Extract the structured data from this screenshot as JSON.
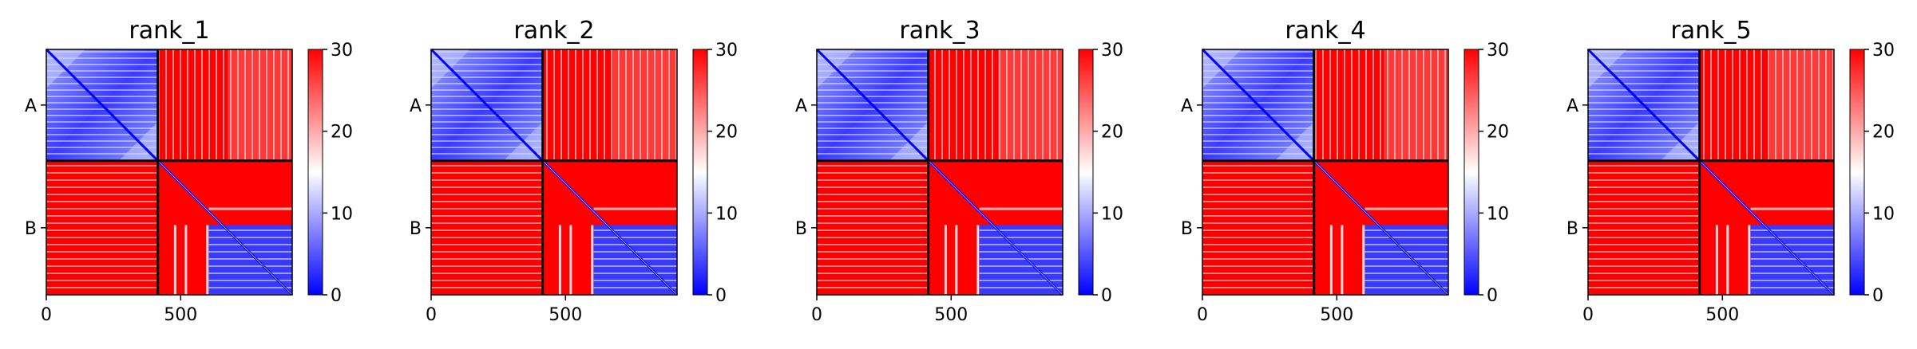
{
  "figure": {
    "panels": [
      {
        "title": "rank_1"
      },
      {
        "title": "rank_2"
      },
      {
        "title": "rank_3"
      },
      {
        "title": "rank_4"
      },
      {
        "title": "rank_5"
      }
    ]
  },
  "chart_data": {
    "type": "heatmap",
    "x_ticks": [
      "0",
      "500"
    ],
    "x_tick_values": [
      0,
      500
    ],
    "y_tick_labels": [
      "A",
      "B"
    ],
    "chain_lengths": {
      "A": 415,
      "B": 500
    },
    "matrix_size": 915,
    "colorbar": {
      "colormap": "bwr",
      "colors": [
        "#0000ff",
        "#ffffff",
        "#ff0000"
      ],
      "range": [
        0,
        30
      ],
      "ticks": [
        "0",
        "10",
        "20",
        "30"
      ],
      "tick_values": [
        0,
        10,
        20,
        30
      ]
    },
    "panels": [
      {
        "title": "rank_1"
      },
      {
        "title": "rank_2"
      },
      {
        "title": "rank_3"
      },
      {
        "title": "rank_4"
      },
      {
        "title": "rank_5"
      }
    ]
  }
}
